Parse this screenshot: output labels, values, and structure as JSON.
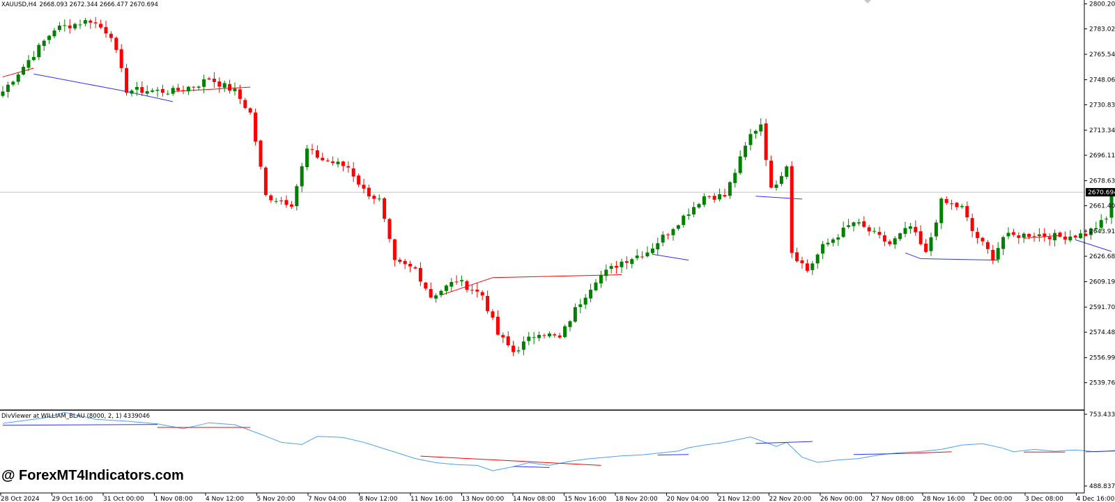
{
  "header": {
    "symbol": "XAUUSD,H4",
    "ohlc": "2668.093 2672.344 2666.477 2670.694"
  },
  "indicator": {
    "title": "DivViewer at WILLIAM_BLAU (8000, 2, 1) 4339046"
  },
  "watermark": "@ ForexMT4Indicators.com",
  "colors": {
    "bull": "#008000",
    "bear": "#ff0000",
    "bear_div_line": "#ff0000",
    "bull_div_line": "#3030ff",
    "oscillator": "#4a9fff",
    "separator": "#000000",
    "price_line": "#c0c0c0",
    "current_price_bg": "#000000",
    "current_price_fg": "#ffffff"
  },
  "chart_data": [
    {
      "type": "candlestick",
      "symbol": "XAUUSD",
      "timeframe": "H4",
      "ylim": [
        2530,
        2800
      ],
      "y_ticks": [
        "2800.200",
        "2783.025",
        "2765.545",
        "2748.065",
        "2730.830",
        "2713.340",
        "2696.115",
        "2678.635",
        "2661.400",
        "2643.910",
        "2626.685",
        "2609.195",
        "2591.705",
        "2574.480",
        "2556.990",
        "2539.765"
      ],
      "current_price": "2670.694",
      "x_labels": [
        "28 Oct 2024",
        "29 Oct 16:00",
        "31 Oct 00:00",
        "1 Nov 08:00",
        "4 Nov 12:00",
        "5 Nov 20:00",
        "7 Nov 04:00",
        "8 Nov 12:00",
        "11 Nov 16:00",
        "13 Nov 00:00",
        "14 Nov 08:00",
        "15 Nov 16:00",
        "18 Nov 20:00",
        "20 Nov 04:00",
        "21 Nov 12:00",
        "22 Nov 20:00",
        "26 Nov 00:00",
        "27 Nov 08:00",
        "28 Nov 16:00",
        "2 Dec 00:00",
        "3 Dec 08:00",
        "4 Dec 16:00"
      ],
      "anchors": [
        [
          0,
          2740
        ],
        [
          10,
          2783
        ],
        [
          17,
          2789
        ],
        [
          21,
          2779
        ],
        [
          24,
          2741
        ],
        [
          33,
          2740
        ],
        [
          38,
          2745
        ],
        [
          40,
          2749
        ],
        [
          45,
          2740
        ],
        [
          48,
          2725
        ],
        [
          51,
          2668
        ],
        [
          56,
          2663
        ],
        [
          59,
          2700
        ],
        [
          62,
          2693
        ],
        [
          67,
          2688
        ],
        [
          70,
          2672
        ],
        [
          73,
          2665
        ],
        [
          76,
          2622
        ],
        [
          80,
          2618
        ],
        [
          83,
          2599
        ],
        [
          88,
          2610
        ],
        [
          93,
          2600
        ],
        [
          96,
          2573
        ],
        [
          99,
          2561
        ],
        [
          104,
          2575
        ],
        [
          108,
          2570
        ],
        [
          111,
          2590
        ],
        [
          115,
          2611
        ],
        [
          120,
          2623
        ],
        [
          125,
          2630
        ],
        [
          128,
          2640
        ],
        [
          136,
          2668
        ],
        [
          140,
          2668
        ],
        [
          145,
          2710
        ],
        [
          147,
          2718
        ],
        [
          149,
          2672
        ],
        [
          152,
          2690
        ],
        [
          153,
          2630
        ],
        [
          156,
          2617
        ],
        [
          159,
          2633
        ],
        [
          165,
          2650
        ],
        [
          168,
          2644
        ],
        [
          172,
          2635
        ],
        [
          176,
          2647
        ],
        [
          179,
          2628
        ],
        [
          182,
          2664
        ],
        [
          186,
          2660
        ],
        [
          188,
          2644
        ],
        [
          192,
          2626
        ],
        [
          194,
          2640
        ],
        [
          200,
          2642
        ],
        [
          205,
          2640
        ],
        [
          210,
          2642
        ],
        [
          214,
          2652
        ],
        [
          215,
          2670
        ]
      ],
      "divergence_lines": [
        {
          "kind": "bear",
          "from": [
            0,
            2750
          ],
          "to": [
            6,
            2756
          ]
        },
        {
          "kind": "bull",
          "from": [
            6,
            2752
          ],
          "to": [
            24,
            2740
          ]
        },
        {
          "kind": "bull",
          "from": [
            24,
            2740
          ],
          "to": [
            33,
            2733
          ]
        },
        {
          "kind": "bear",
          "from": [
            33,
            2740
          ],
          "to": [
            48,
            2743
          ]
        },
        {
          "kind": "bear",
          "from": [
            85,
            2600
          ],
          "to": [
            95,
            2612
          ]
        },
        {
          "kind": "bear",
          "from": [
            95,
            2612
          ],
          "to": [
            120,
            2614
          ]
        },
        {
          "kind": "bull",
          "from": [
            126,
            2628
          ],
          "to": [
            133,
            2624
          ]
        },
        {
          "kind": "bull",
          "from": [
            146,
            2668
          ],
          "to": [
            155,
            2666
          ]
        },
        {
          "kind": "bull",
          "from": [
            175,
            2629
          ],
          "to": [
            178,
            2625
          ]
        },
        {
          "kind": "bull",
          "from": [
            178,
            2625
          ],
          "to": [
            193,
            2624
          ]
        },
        {
          "kind": "bear",
          "from": [
            198,
            2639
          ],
          "to": [
            205,
            2641
          ]
        },
        {
          "kind": "bull",
          "from": [
            208,
            2638
          ],
          "to": [
            215,
            2630
          ]
        }
      ]
    },
    {
      "type": "line",
      "title": "DivViewer at WILLIAM_BLAU (8000, 2, 1) 4339046",
      "ylim": [
        488.8379,
        753.4332
      ],
      "y_ticks": [
        "753.4332",
        "488.8379"
      ],
      "x": [
        0,
        8,
        12,
        18,
        24,
        30,
        35,
        40,
        45,
        50,
        54,
        58,
        61,
        66,
        70,
        75,
        80,
        84,
        88,
        92,
        95,
        99,
        102,
        106,
        110,
        113,
        117,
        120,
        124,
        128,
        131,
        133,
        136,
        140,
        145,
        150,
        152,
        155,
        158,
        162,
        166,
        170,
        174,
        178,
        182,
        186,
        190,
        194,
        196,
        200,
        204,
        208,
        212,
        216
      ],
      "y": [
        720,
        740,
        760,
        735,
        728,
        718,
        700,
        722,
        715,
        680,
        650,
        642,
        672,
        668,
        650,
        620,
        590,
        575,
        568,
        565,
        545,
        560,
        575,
        565,
        580,
        588,
        595,
        600,
        604,
        612,
        618,
        630,
        640,
        650,
        670,
        635,
        650,
        595,
        576,
        585,
        590,
        604,
        612,
        616,
        624,
        640,
        645,
        628,
        615,
        624,
        617,
        622,
        615,
        620
      ],
      "series": [
        {
          "name": "WILLIAM_BLAU",
          "color": "#4a9fff"
        }
      ],
      "divergence_lines": [
        {
          "kind": "bull",
          "from": [
            0,
            713
          ],
          "to": [
            30,
            716
          ]
        },
        {
          "kind": "bear",
          "from": [
            30,
            705
          ],
          "to": [
            48,
            705
          ]
        },
        {
          "kind": "bear",
          "from": [
            81,
            599
          ],
          "to": [
            116,
            565
          ]
        },
        {
          "kind": "bull",
          "from": [
            99,
            561
          ],
          "to": [
            106,
            557
          ]
        },
        {
          "kind": "bull",
          "from": [
            127,
            603
          ],
          "to": [
            133,
            605
          ]
        },
        {
          "kind": "bull",
          "from": [
            146,
            646
          ],
          "to": [
            157,
            653
          ]
        },
        {
          "kind": "bull",
          "from": [
            165,
            605
          ],
          "to": [
            175,
            609
          ]
        },
        {
          "kind": "bear",
          "from": [
            175,
            609
          ],
          "to": [
            184,
            615
          ]
        },
        {
          "kind": "bear",
          "from": [
            198,
            614
          ],
          "to": [
            206,
            614
          ]
        },
        {
          "kind": "bull",
          "from": [
            210,
            615
          ],
          "to": [
            216,
            618
          ]
        }
      ]
    }
  ]
}
